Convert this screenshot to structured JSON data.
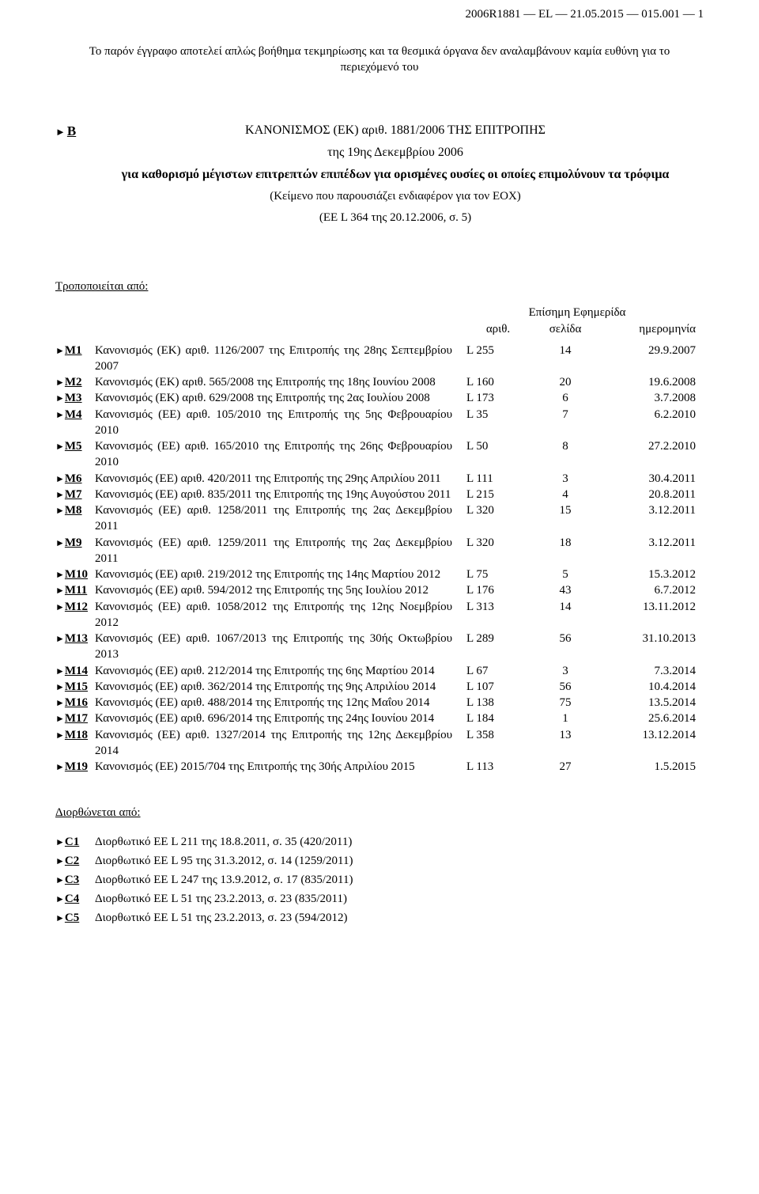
{
  "header": "2006R1881 — EL — 21.05.2015 — 015.001 — 1",
  "disclaimer": "Το παρόν έγγραφο αποτελεί απλώς βοήθημα τεκμηρίωσης και τα θεσμικά όργανα δεν αναλαμβάνουν καμία ευθύνη για το περιεχόμενό του",
  "b": {
    "marker": "B",
    "title": "ΚΑΝΟΝΙΣΜΟΣ (ΕΚ) αριθ. 1881/2006 ΤΗΣ ΕΠΙΤΡΟΠΗΣ",
    "subtitle": "της 19ης Δεκεμβρίου 2006",
    "bold": "για καθορισμό μέγιστων επιτρεπτών επιπέδων για ορισμένες ουσίες οι οποίες επιμολύνουν τα τρόφιμα",
    "note": "(Κείμενο που παρουσιάζει ενδιαφέρον για τον ΕΟΧ)",
    "oj": "(EE L 364 της 20.12.2006, σ. 5)"
  },
  "amend_label": "Τροποποιείται από:",
  "journal_title": "Επίσημη Εφημερίδα",
  "cols": {
    "a": "αριθ.",
    "b": "σελίδα",
    "c": "ημερομηνία"
  },
  "amendments": [
    {
      "m": "M1",
      "t": "Κανονισμός (ΕΚ) αριθ. 1126/2007 της Επιτροπής της 28ης Σεπτεμβρίου 2007",
      "a": "L 255",
      "b": "14",
      "c": "29.9.2007"
    },
    {
      "m": "M2",
      "t": "Κανονισμός (ΕΚ) αριθ. 565/2008 της Επιτροπής της 18ης Ιουνίου 2008",
      "a": "L 160",
      "b": "20",
      "c": "19.6.2008"
    },
    {
      "m": "M3",
      "t": "Κανονισμός (ΕΚ) αριθ. 629/2008 της Επιτροπής της 2ας Ιουλίου 2008",
      "a": "L 173",
      "b": "6",
      "c": "3.7.2008"
    },
    {
      "m": "M4",
      "t": "Κανονισμός (ΕΕ) αριθ. 105/2010 της Επιτροπής της 5ης Φεβρουαρίου 2010",
      "a": "L 35",
      "b": "7",
      "c": "6.2.2010"
    },
    {
      "m": "M5",
      "t": "Κανονισμός (ΕΕ) αριθ. 165/2010 της Επιτροπής της 26ης Φεβρουαρίου 2010",
      "a": "L 50",
      "b": "8",
      "c": "27.2.2010"
    },
    {
      "m": "M6",
      "t": "Κανονισμός (ΕΕ) αριθ. 420/2011 της Επιτροπής της 29ης Απριλίου 2011",
      "a": "L 111",
      "b": "3",
      "c": "30.4.2011"
    },
    {
      "m": "M7",
      "t": "Κανονισμός (ΕΕ) αριθ. 835/2011 της Επιτροπής της 19ης Αυγούστου 2011",
      "a": "L 215",
      "b": "4",
      "c": "20.8.2011"
    },
    {
      "m": "M8",
      "t": "Κανονισμός (ΕΕ) αριθ. 1258/2011 της Επιτροπής της 2ας Δεκεμβρίου 2011",
      "a": "L 320",
      "b": "15",
      "c": "3.12.2011"
    },
    {
      "m": "M9",
      "t": "Κανονισμός (ΕΕ) αριθ. 1259/2011 της Επιτροπής της 2ας Δεκεμβρίου 2011",
      "a": "L 320",
      "b": "18",
      "c": "3.12.2011"
    },
    {
      "m": "M10",
      "t": "Κανονισμός (ΕΕ) αριθ. 219/2012 της Επιτροπής της 14ης Μαρτίου 2012",
      "a": "L 75",
      "b": "5",
      "c": "15.3.2012"
    },
    {
      "m": "M11",
      "t": "Κανονισμός (ΕΕ) αριθ. 594/2012 της Επιτροπής της 5ης Ιουλίου 2012",
      "a": "L 176",
      "b": "43",
      "c": "6.7.2012"
    },
    {
      "m": "M12",
      "t": "Κανονισμός (ΕΕ) αριθ. 1058/2012 της Επιτροπής της 12ης Νοεμβρίου 2012",
      "a": "L 313",
      "b": "14",
      "c": "13.11.2012"
    },
    {
      "m": "M13",
      "t": "Κανονισμός (ΕΕ) αριθ. 1067/2013 της Επιτροπής της 30ής Οκτωβρίου 2013",
      "a": "L 289",
      "b": "56",
      "c": "31.10.2013"
    },
    {
      "m": "M14",
      "t": "Κανονισμός (ΕΕ) αριθ. 212/2014 της Επιτροπής της 6ης Μαρτίου 2014",
      "a": "L 67",
      "b": "3",
      "c": "7.3.2014"
    },
    {
      "m": "M15",
      "t": "Κανονισμός (ΕΕ) αριθ. 362/2014 της Επιτροπής της 9ης Απριλίου 2014",
      "a": "L 107",
      "b": "56",
      "c": "10.4.2014"
    },
    {
      "m": "M16",
      "t": "Κανονισμός (ΕΕ) αριθ. 488/2014 της Επιτροπής της 12ης Μαΐου 2014",
      "a": "L 138",
      "b": "75",
      "c": "13.5.2014"
    },
    {
      "m": "M17",
      "t": "Κανονισμός (ΕΕ) αριθ. 696/2014 της Επιτροπής της 24ης Ιουνίου 2014",
      "a": "L 184",
      "b": "1",
      "c": "25.6.2014"
    },
    {
      "m": "M18",
      "t": "Κανονισμός (ΕΕ) αριθ. 1327/2014 της Επιτροπής της 12ης Δεκεμβρίου 2014",
      "a": "L 358",
      "b": "13",
      "c": "13.12.2014"
    },
    {
      "m": "M19",
      "t": "Κανονισμός (ΕΕ) 2015/704 της Επιτροπής της 30ής Απριλίου 2015",
      "a": "L 113",
      "b": "27",
      "c": "1.5.2015"
    }
  ],
  "corr_label": "Διορθώνεται από:",
  "corrections": [
    {
      "m": "C1",
      "t": "Διορθωτικό ΕΕ L 211 της 18.8.2011, σ. 35 (420/2011)"
    },
    {
      "m": "C2",
      "t": "Διορθωτικό ΕΕ L 95 της 31.3.2012, σ. 14 (1259/2011)"
    },
    {
      "m": "C3",
      "t": "Διορθωτικό ΕΕ L 247 της 13.9.2012, σ. 17 (835/2011)"
    },
    {
      "m": "C4",
      "t": "Διορθωτικό ΕΕ L 51 της 23.2.2013, σ. 23 (835/2011)"
    },
    {
      "m": "C5",
      "t": "Διορθωτικό ΕΕ L 51 της 23.2.2013, σ. 23 (594/2012)"
    }
  ]
}
